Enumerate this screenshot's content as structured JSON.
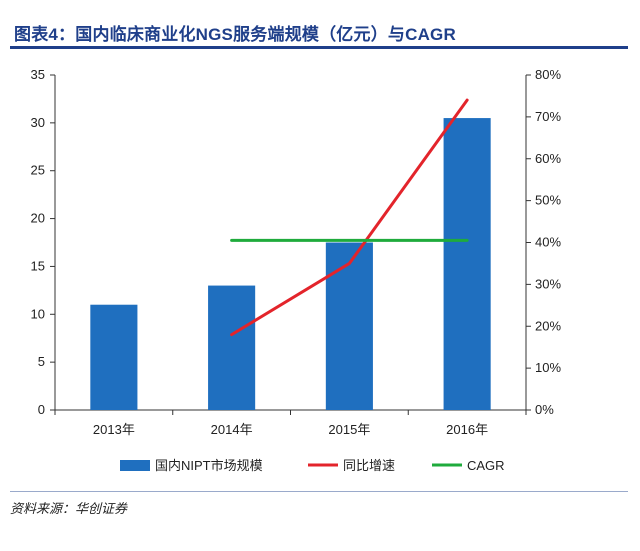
{
  "title": "图表4：国内临床商业化NGS服务端规模（亿元）与CAGR",
  "source": "资料来源：华创证券",
  "chart_data": {
    "type": "bar",
    "categories": [
      "2013年",
      "2014年",
      "2015年",
      "2016年"
    ],
    "series": [
      {
        "name": "国内NIPT市场规模",
        "type": "bar",
        "axis": "left",
        "color": "#1f6fbf",
        "values": [
          11,
          13,
          17.5,
          30.5
        ]
      },
      {
        "name": "同比增速",
        "type": "line",
        "axis": "right",
        "color": "#e3242b",
        "values": [
          null,
          0.18,
          0.35,
          0.74
        ]
      },
      {
        "name": "CAGR",
        "type": "line",
        "axis": "right",
        "color": "#1fab3c",
        "values": [
          null,
          0.405,
          0.405,
          0.405
        ]
      }
    ],
    "ylim_left": [
      0,
      35
    ],
    "yticks_left": [
      "0",
      "5",
      "10",
      "15",
      "20",
      "25",
      "30",
      "35"
    ],
    "ylim_right": [
      0,
      0.8
    ],
    "yticks_right": [
      "0%",
      "10%",
      "20%",
      "30%",
      "40%",
      "50%",
      "60%",
      "70%",
      "80%"
    ],
    "grid": false,
    "legend_position": "bottom"
  }
}
